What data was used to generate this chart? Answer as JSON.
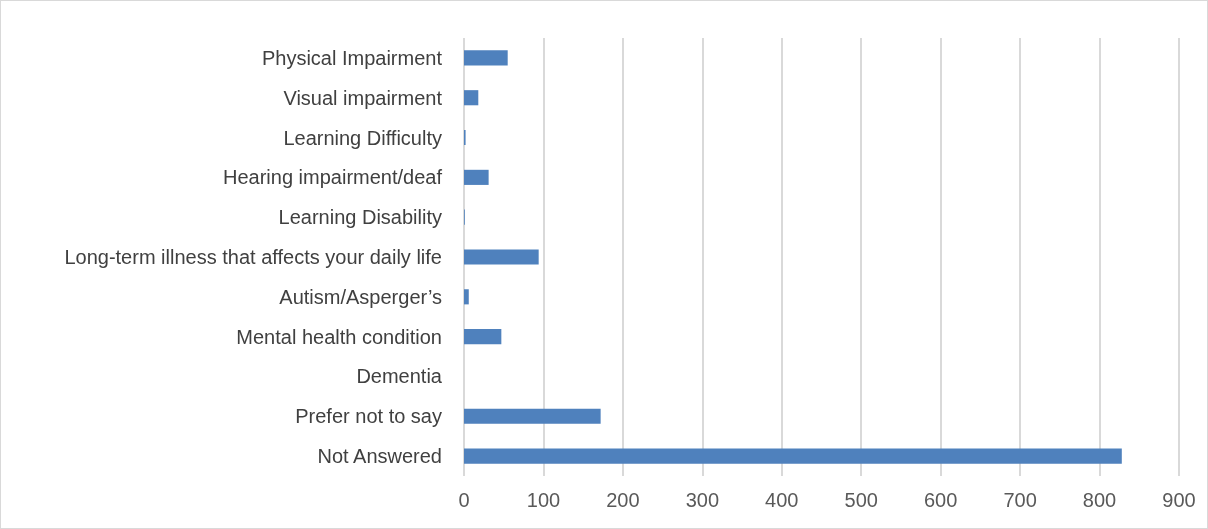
{
  "chart_data": {
    "type": "bar",
    "orientation": "horizontal",
    "categories": [
      "Physical Impairment",
      "Visual impairment",
      "Learning Difficulty",
      "Hearing impairment/deaf",
      "Learning Disability",
      "Long-term illness that affects your daily life",
      "Autism/Asperger’s",
      "Mental health condition",
      "Dementia",
      "Prefer not to say",
      "Not Answered"
    ],
    "values": [
      55,
      18,
      2,
      31,
      1,
      94,
      6,
      47,
      0,
      172,
      828
    ],
    "color": "#4f81bd",
    "xlim": [
      0,
      900
    ],
    "xticks": [
      0,
      100,
      200,
      300,
      400,
      500,
      600,
      700,
      800,
      900
    ],
    "grid": "x"
  }
}
